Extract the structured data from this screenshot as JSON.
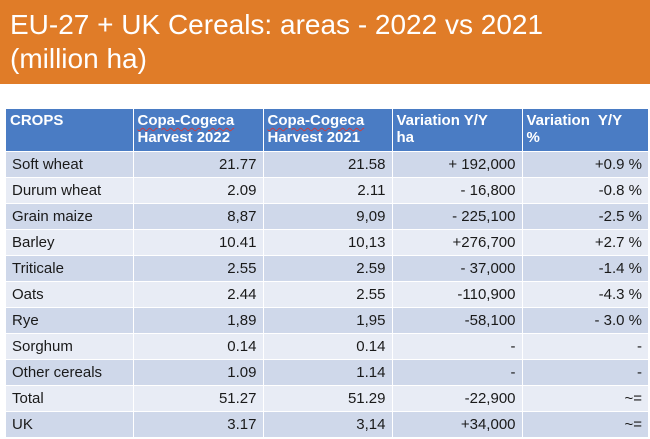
{
  "title": {
    "line1": "EU-27 + UK Cereals: areas - 2022 vs 2021",
    "line2": "(million ha)"
  },
  "table": {
    "headers": [
      {
        "line1": "CROPS",
        "line2": ""
      },
      {
        "line1": "Copa-Cogeca",
        "line2": "Harvest 2022"
      },
      {
        "line1": "Copa-Cogeca",
        "line2": "Harvest 2021"
      },
      {
        "line1": "Variation Y/Y",
        "line2": "ha"
      },
      {
        "line1": "Variation  Y/Y",
        "line2": "%"
      }
    ],
    "rows": [
      [
        "Soft wheat",
        "21.77",
        "21.58",
        "+ 192,000",
        "+0.9 %"
      ],
      [
        "Durum wheat",
        "2.09",
        "2.11",
        "- 16,800",
        "-0.8 %"
      ],
      [
        "Grain maize",
        "8,87",
        "9,09",
        "- 225,100",
        "-2.5 %"
      ],
      [
        "Barley",
        "10.41",
        "10,13",
        "+276,700",
        "+2.7 %"
      ],
      [
        "Triticale",
        "2.55",
        "2.59",
        "- 37,000",
        "-1.4 %"
      ],
      [
        "Oats",
        "2.44",
        "2.55",
        "-110,900",
        "-4.3 %"
      ],
      [
        "Rye",
        "1,89",
        "1,95",
        "-58,100",
        "- 3.0 %"
      ],
      [
        "Sorghum",
        "0.14",
        "0.14",
        "-",
        "-"
      ],
      [
        "Other cereals",
        "1.09",
        "1.14",
        "-",
        "-"
      ],
      [
        "Total",
        "51.27",
        "51.29",
        "-22,900",
        "~="
      ],
      [
        "UK",
        "3.17",
        "3,14",
        "+34,000",
        "~="
      ]
    ]
  },
  "colors": {
    "title_bg": "#e07c28",
    "header_bg": "#4a7cc4",
    "row_odd": "#cfd8ea",
    "row_even": "#e8ecf5"
  }
}
